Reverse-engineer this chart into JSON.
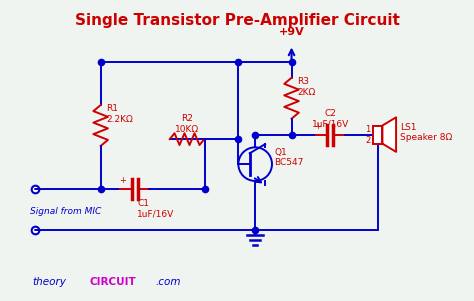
{
  "title": "Single Transistor Pre-Amplifier Circuit",
  "title_color": "#cc0000",
  "title_fontsize": 11,
  "bg_color": "#f0f4f0",
  "wire_color": "#0000cc",
  "component_color": "#cc0000",
  "signal_label": "Signal from MIC",
  "signal_color": "#0000cc",
  "watermark_color_theory": "#0000cc",
  "watermark_color_circuit": "#cc00cc",
  "labels": {
    "R1": "R1\n2.2KΩ",
    "R2": "R2\n10KΩ",
    "R3": "R3\n2KΩ",
    "C1": "C1\n1uF/16V",
    "C2": "C2\n1uF/16V",
    "Q1": "Q1\nBC547",
    "LS1": "LS1\nSpeaker 8Ω",
    "VCC": "+9V"
  }
}
